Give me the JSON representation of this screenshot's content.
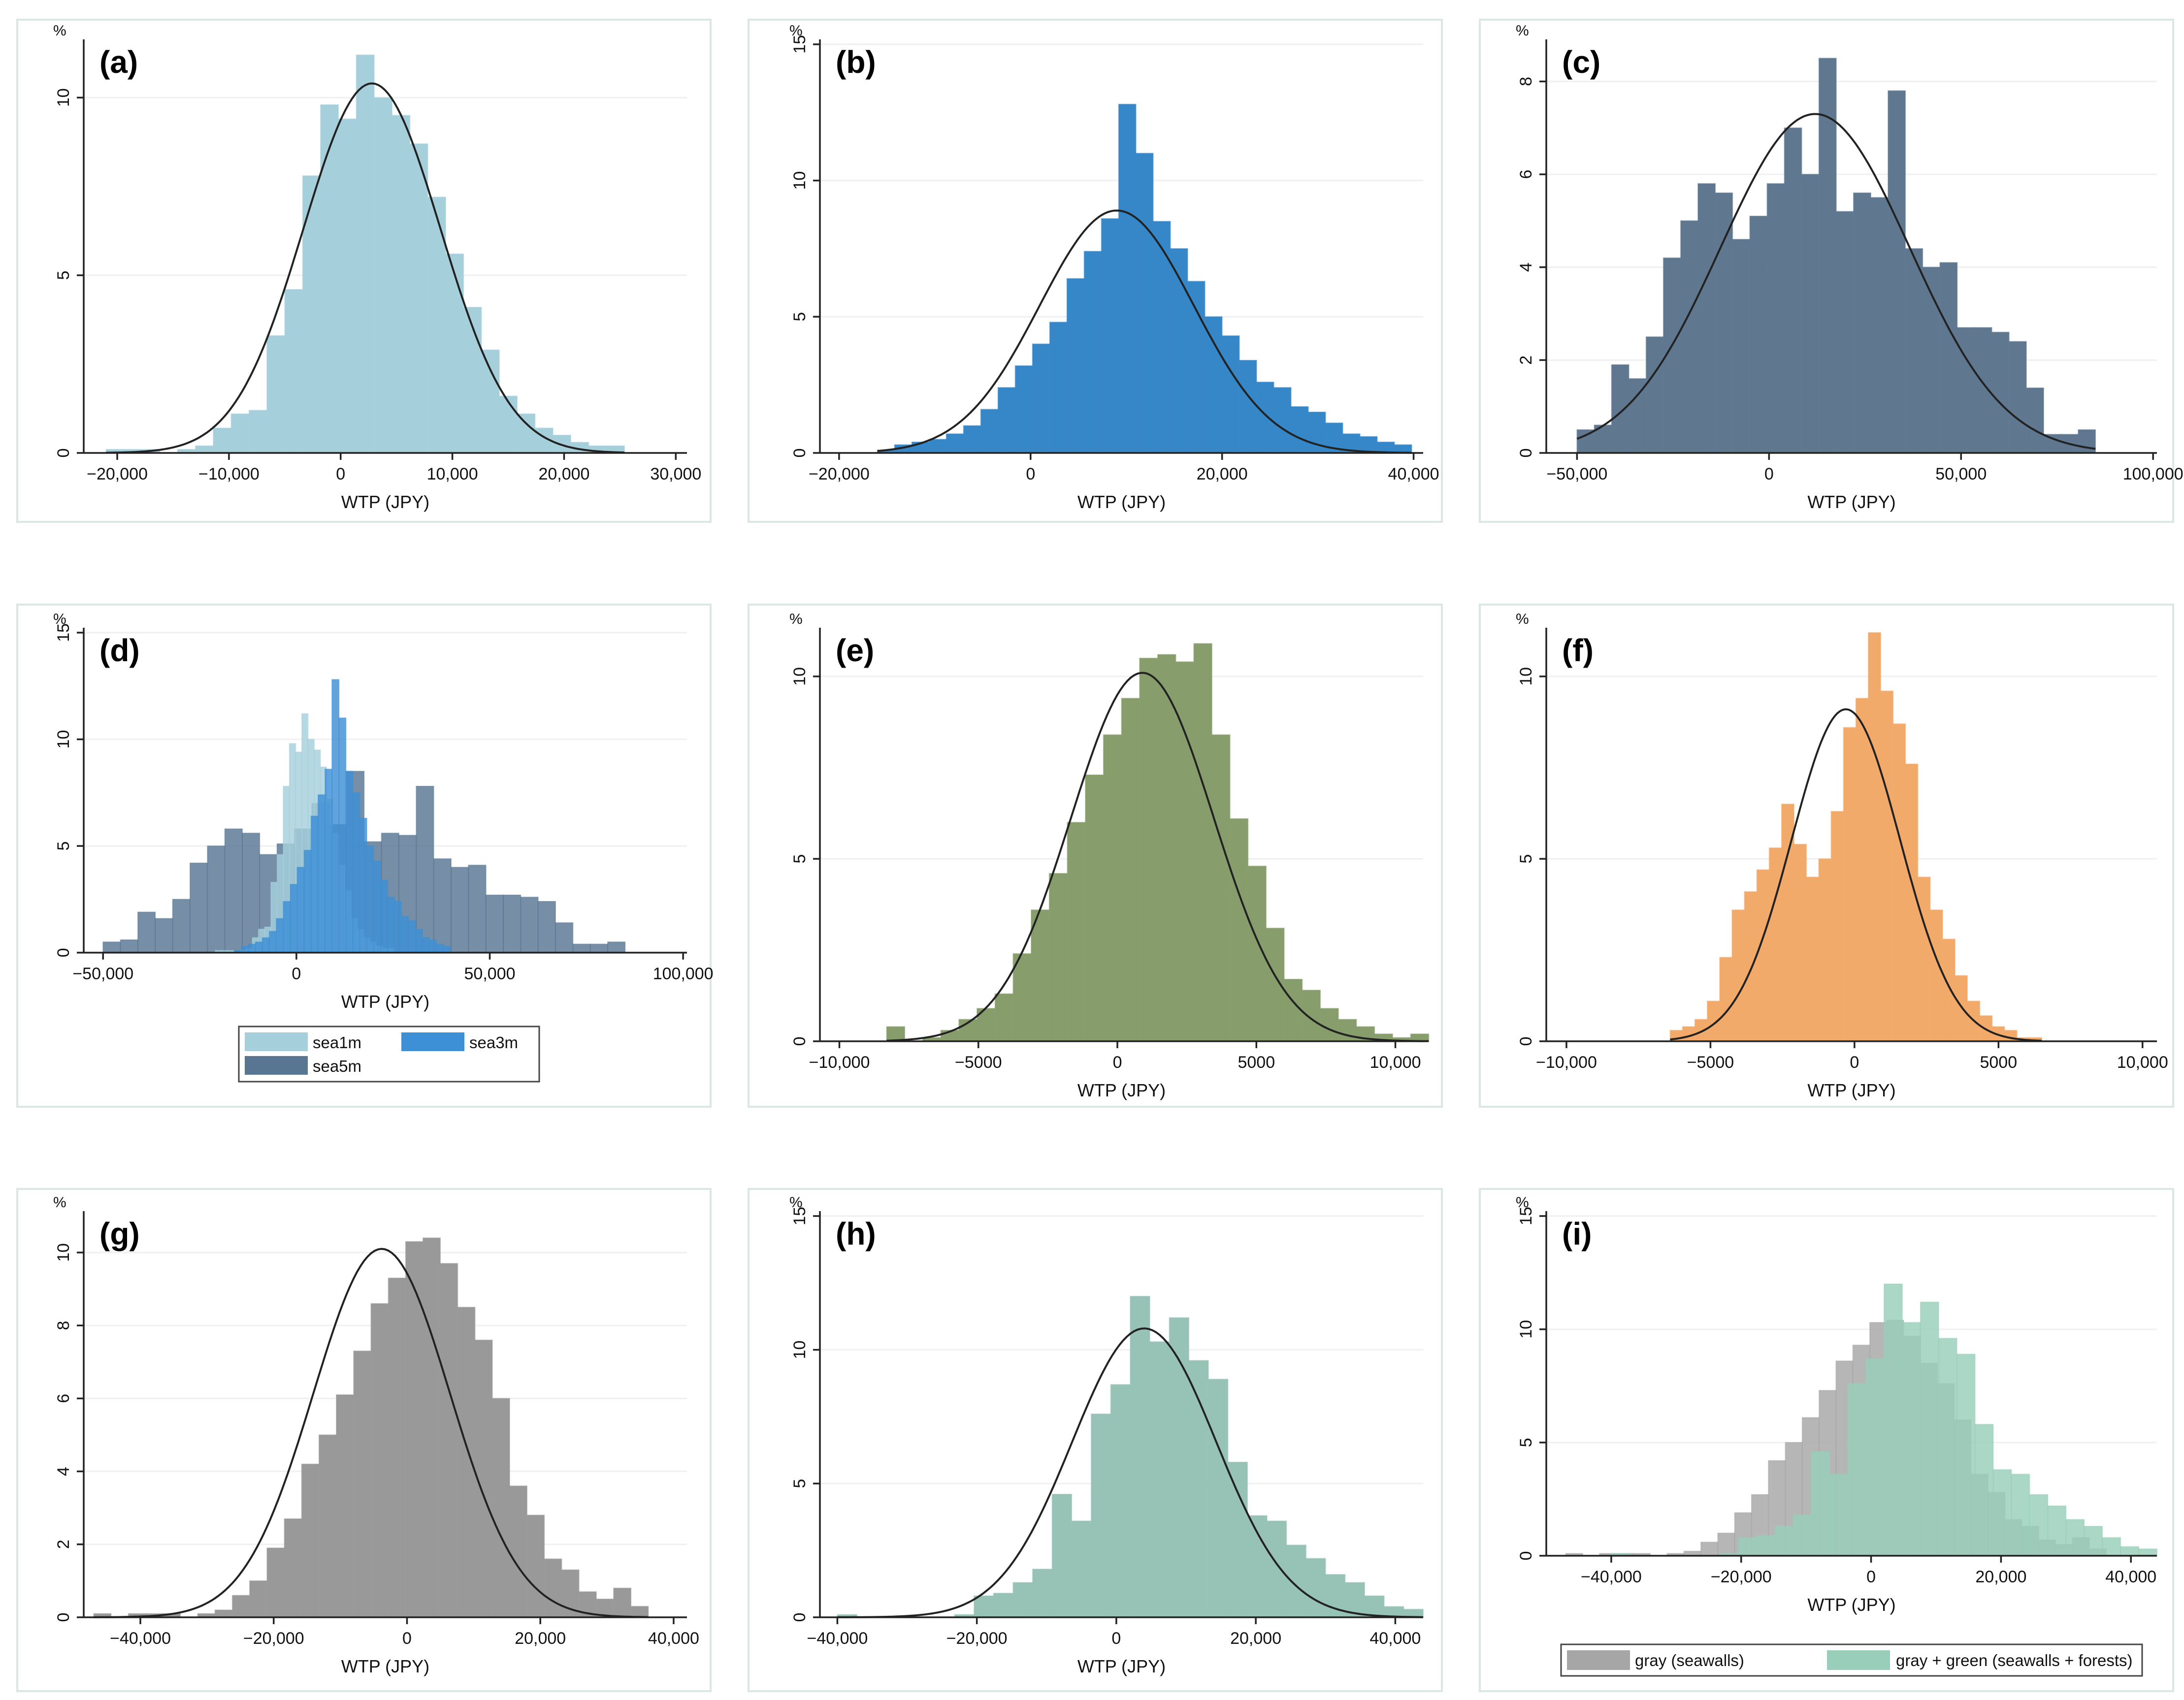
{
  "chart_data": [
    {
      "panel": "(a)",
      "type": "bar",
      "xlabel": "WTP (JPY)",
      "ylabel": "%",
      "xlim": [
        -23000,
        31000
      ],
      "ylim": [
        0,
        11.5
      ],
      "xticks": [
        -20000,
        -10000,
        0,
        10000,
        20000,
        30000
      ],
      "xtick_labels": [
        "−20,000",
        "−10,000",
        "0",
        "10,000",
        "20,000",
        "30,000"
      ],
      "yticks": [
        0,
        5,
        10
      ],
      "ytick_labels": [
        "0",
        "5",
        "10"
      ],
      "fit": {
        "mean": 2800,
        "peak": 10.4
      },
      "series": [
        {
          "name": "WTP",
          "color": "#a6cfdc",
          "bin_start": -21000,
          "bin_width": 1600,
          "values": [
            0.1,
            0.1,
            0.1,
            0,
            0.1,
            0.2,
            0.7,
            1.1,
            1.2,
            3.3,
            4.6,
            7.8,
            9.8,
            9.4,
            11.2,
            10.0,
            9.5,
            8.7,
            7.2,
            5.6,
            4.1,
            2.9,
            1.6,
            1.1,
            0.7,
            0.5,
            0.3,
            0.2,
            0.2
          ]
        }
      ]
    },
    {
      "panel": "(b)",
      "type": "bar",
      "xlabel": "WTP (JPY)",
      "ylabel": "%",
      "xlim": [
        -22000,
        41000
      ],
      "ylim": [
        0,
        15
      ],
      "xticks": [
        -20000,
        0,
        20000,
        40000
      ],
      "xtick_labels": [
        "−20,000",
        "0",
        "20,000",
        "40,000"
      ],
      "yticks": [
        0,
        5,
        10,
        15
      ],
      "ytick_labels": [
        "0",
        "5",
        "10",
        "15"
      ],
      "fit": {
        "mean": 9000,
        "peak": 8.9
      },
      "series": [
        {
          "name": "WTP",
          "color": "#3587c8",
          "bin_start": -16000,
          "bin_width": 1800,
          "values": [
            0.1,
            0.3,
            0.4,
            0.5,
            0.7,
            1.0,
            1.6,
            2.4,
            3.2,
            4.0,
            4.8,
            6.4,
            7.4,
            8.6,
            12.8,
            11.0,
            8.5,
            7.5,
            6.3,
            5.0,
            4.3,
            3.4,
            2.6,
            2.4,
            1.7,
            1.5,
            1.1,
            0.7,
            0.6,
            0.4,
            0.3
          ]
        }
      ]
    },
    {
      "panel": "(c)",
      "type": "bar",
      "xlabel": "WTP (JPY)",
      "ylabel": "%",
      "xlim": [
        -58000,
        101000
      ],
      "ylim": [
        0,
        8.8
      ],
      "xticks": [
        -50000,
        0,
        50000,
        100000
      ],
      "xtick_labels": [
        "−50,000",
        "0",
        "50,000",
        "100,000"
      ],
      "yticks": [
        0,
        2,
        4,
        6,
        8
      ],
      "ytick_labels": [
        "0",
        "2",
        "4",
        "6",
        "8"
      ],
      "fit": {
        "mean": 12000,
        "peak": 7.3
      },
      "series": [
        {
          "name": "WTP",
          "color": "#5f7890",
          "bin_start": -50000,
          "bin_width": 4500,
          "values": [
            0.5,
            0.6,
            1.9,
            1.6,
            2.5,
            4.2,
            5.0,
            5.8,
            5.6,
            4.6,
            5.1,
            5.8,
            7.0,
            6.0,
            8.5,
            5.2,
            5.6,
            5.5,
            7.8,
            4.4,
            4.0,
            4.1,
            2.7,
            2.7,
            2.6,
            2.4,
            1.4,
            0.4,
            0.4,
            0.5
          ]
        }
      ]
    },
    {
      "panel": "(d)",
      "type": "bar",
      "xlabel": "WTP (JPY)",
      "ylabel": "%",
      "xlim": [
        -55000,
        101000
      ],
      "ylim": [
        0,
        15
      ],
      "xticks": [
        -50000,
        0,
        50000,
        100000
      ],
      "xtick_labels": [
        "−50,000",
        "0",
        "50,000",
        "100,000"
      ],
      "yticks": [
        0,
        5,
        10,
        15
      ],
      "ytick_labels": [
        "0",
        "5",
        "10",
        "15"
      ],
      "legend": [
        "sea1m",
        "sea3m",
        "sea5m"
      ],
      "series": [
        {
          "name": "sea5m",
          "color": "#587592",
          "bin_start": -50000,
          "bin_width": 4500,
          "values": [
            0.5,
            0.6,
            1.9,
            1.6,
            2.5,
            4.2,
            5.0,
            5.8,
            5.6,
            4.6,
            5.1,
            5.8,
            7.0,
            6.0,
            8.5,
            5.2,
            5.6,
            5.5,
            7.8,
            4.4,
            4.0,
            4.1,
            2.7,
            2.7,
            2.6,
            2.4,
            1.4,
            0.4,
            0.4,
            0.5
          ]
        },
        {
          "name": "sea1m",
          "color": "#a6cfdc",
          "bin_start": -21000,
          "bin_width": 1600,
          "values": [
            0.1,
            0.1,
            0.1,
            0,
            0.1,
            0.2,
            0.7,
            1.1,
            1.2,
            3.3,
            4.6,
            7.8,
            9.8,
            9.4,
            11.2,
            10.0,
            9.5,
            8.7,
            7.2,
            5.6,
            4.1,
            2.9,
            1.6,
            1.1,
            0.7,
            0.5,
            0.3,
            0.2,
            0.2
          ]
        },
        {
          "name": "sea3m",
          "color": "#3d8fd6",
          "bin_start": -16000,
          "bin_width": 1800,
          "values": [
            0.1,
            0.3,
            0.4,
            0.5,
            0.7,
            1.0,
            1.6,
            2.4,
            3.2,
            4.0,
            4.8,
            6.4,
            7.4,
            8.6,
            12.8,
            11.0,
            8.5,
            7.5,
            6.3,
            5.0,
            4.3,
            3.4,
            2.6,
            2.4,
            1.7,
            1.5,
            1.1,
            0.7,
            0.6,
            0.4,
            0.3
          ]
        }
      ]
    },
    {
      "panel": "(e)",
      "type": "bar",
      "xlabel": "WTP (JPY)",
      "ylabel": "%",
      "xlim": [
        -10700,
        11000
      ],
      "ylim": [
        0,
        11.2
      ],
      "xticks": [
        -10000,
        -5000,
        0,
        5000,
        10000
      ],
      "xtick_labels": [
        "−10,000",
        "−5000",
        "0",
        "5000",
        "10,000"
      ],
      "yticks": [
        0,
        5,
        10
      ],
      "ytick_labels": [
        "0",
        "5",
        "10"
      ],
      "fit": {
        "mean": 900,
        "peak": 10.1
      },
      "series": [
        {
          "name": "WTP",
          "color": "#879e6c",
          "bin_start": -8300,
          "bin_width": 650,
          "values": [
            0.4,
            0,
            0.1,
            0.3,
            0.6,
            0.9,
            1.3,
            2.4,
            3.6,
            4.6,
            6.0,
            7.3,
            8.4,
            9.4,
            10.5,
            10.6,
            10.4,
            10.9,
            8.4,
            6.1,
            4.8,
            3.1,
            1.7,
            1.4,
            0.9,
            0.6,
            0.4,
            0.2,
            0.1,
            0.2
          ]
        }
      ]
    },
    {
      "panel": "(f)",
      "type": "bar",
      "xlabel": "WTP (JPY)",
      "ylabel": "%",
      "xlim": [
        -10700,
        10500
      ],
      "ylim": [
        0,
        11.2
      ],
      "xticks": [
        -10000,
        -5000,
        0,
        5000,
        10000
      ],
      "xtick_labels": [
        "−10,000",
        "−5000",
        "0",
        "5000",
        "10,000"
      ],
      "yticks": [
        0,
        5,
        10
      ],
      "ytick_labels": [
        "0",
        "5",
        "10"
      ],
      "fit": {
        "mean": -300,
        "peak": 9.1
      },
      "series": [
        {
          "name": "WTP",
          "color": "#f2aa6b",
          "bin_start": -6400,
          "bin_width": 430,
          "values": [
            0.3,
            0.4,
            0.6,
            1.1,
            2.3,
            3.6,
            4.1,
            4.7,
            5.3,
            6.5,
            5.4,
            4.5,
            5.0,
            6.3,
            8.6,
            9.4,
            11.2,
            9.6,
            8.7,
            7.6,
            4.5,
            3.6,
            2.8,
            1.8,
            1.1,
            0.7,
            0.4,
            0.3,
            0.1,
            0.1
          ]
        }
      ]
    },
    {
      "panel": "(g)",
      "type": "bar",
      "xlabel": "WTP (JPY)",
      "ylabel": "%",
      "xlim": [
        -48500,
        42000
      ],
      "ylim": [
        0,
        11
      ],
      "xticks": [
        -40000,
        -20000,
        0,
        20000,
        40000
      ],
      "xtick_labels": [
        "−40,000",
        "−20,000",
        "0",
        "20,000",
        "40,000"
      ],
      "yticks": [
        0,
        2,
        4,
        6,
        8,
        10
      ],
      "ytick_labels": [
        "0",
        "2",
        "4",
        "6",
        "8",
        "10"
      ],
      "fit": {
        "mean": -3800,
        "peak": 10.1
      },
      "series": [
        {
          "name": "WTP",
          "color": "#999999",
          "bin_start": -47000,
          "bin_width": 2600,
          "values": [
            0.1,
            0,
            0.1,
            0.1,
            0.1,
            0,
            0.1,
            0.2,
            0.6,
            1.0,
            1.9,
            2.7,
            4.2,
            5.0,
            6.1,
            7.3,
            8.6,
            9.3,
            10.3,
            10.4,
            9.7,
            8.5,
            7.6,
            6.0,
            3.6,
            2.8,
            1.6,
            1.3,
            0.7,
            0.5,
            0.8,
            0.3
          ]
        }
      ]
    },
    {
      "panel": "(h)",
      "type": "bar",
      "xlabel": "WTP (JPY)",
      "ylabel": "%",
      "xlim": [
        -42500,
        44000
      ],
      "ylim": [
        0,
        15
      ],
      "xticks": [
        -40000,
        -20000,
        0,
        20000,
        40000
      ],
      "xtick_labels": [
        "−40,000",
        "−20,000",
        "0",
        "20,000",
        "40,000"
      ],
      "yticks": [
        0,
        5,
        10,
        15
      ],
      "ytick_labels": [
        "0",
        "5",
        "10",
        "15"
      ],
      "fit": {
        "mean": 4000,
        "peak": 10.8
      },
      "series": [
        {
          "name": "WTP",
          "color": "#97c2b6",
          "bin_start": -40000,
          "bin_width": 2800,
          "values": [
            0.1,
            0,
            0,
            0,
            0,
            0,
            0.1,
            0.8,
            0.9,
            1.3,
            1.8,
            4.6,
            3.6,
            7.6,
            8.7,
            12.0,
            10.3,
            11.2,
            9.6,
            8.9,
            5.8,
            3.8,
            3.6,
            2.7,
            2.2,
            1.6,
            1.3,
            0.8,
            0.4,
            0.3
          ]
        }
      ]
    },
    {
      "panel": "(i)",
      "type": "bar",
      "xlabel": "WTP (JPY)",
      "ylabel": "%",
      "xlim": [
        -50000,
        44000
      ],
      "ylim": [
        0,
        15
      ],
      "xticks": [
        -40000,
        -20000,
        0,
        20000,
        40000
      ],
      "xtick_labels": [
        "−40,000",
        "−20,000",
        "0",
        "20,000",
        "40,000"
      ],
      "yticks": [
        0,
        5,
        10,
        15
      ],
      "ytick_labels": [
        "0",
        "5",
        "10",
        "15"
      ],
      "legend": [
        "gray (seawalls)",
        "gray + green (seawalls + forests)"
      ],
      "series": [
        {
          "name": "gray (seawalls)",
          "color": "#a6a6a6",
          "bin_start": -47000,
          "bin_width": 2600,
          "values": [
            0.1,
            0,
            0.1,
            0.1,
            0.1,
            0,
            0.1,
            0.2,
            0.6,
            1.0,
            1.9,
            2.7,
            4.2,
            5.0,
            6.1,
            7.3,
            8.6,
            9.3,
            10.3,
            10.4,
            9.7,
            8.5,
            7.6,
            6.0,
            3.6,
            2.8,
            1.6,
            1.3,
            0.7,
            0.5,
            0.8,
            0.3
          ]
        },
        {
          "name": "gray + green (seawalls + forests)",
          "color": "#98ceba",
          "bin_start": -40000,
          "bin_width": 2800,
          "values": [
            0.1,
            0,
            0,
            0,
            0,
            0,
            0.1,
            0.8,
            0.9,
            1.3,
            1.8,
            4.6,
            3.6,
            7.6,
            8.7,
            12.0,
            10.3,
            11.2,
            9.6,
            8.9,
            5.8,
            3.8,
            3.6,
            2.7,
            2.2,
            1.6,
            1.3,
            0.8,
            0.4,
            0.3
          ]
        }
      ]
    }
  ]
}
